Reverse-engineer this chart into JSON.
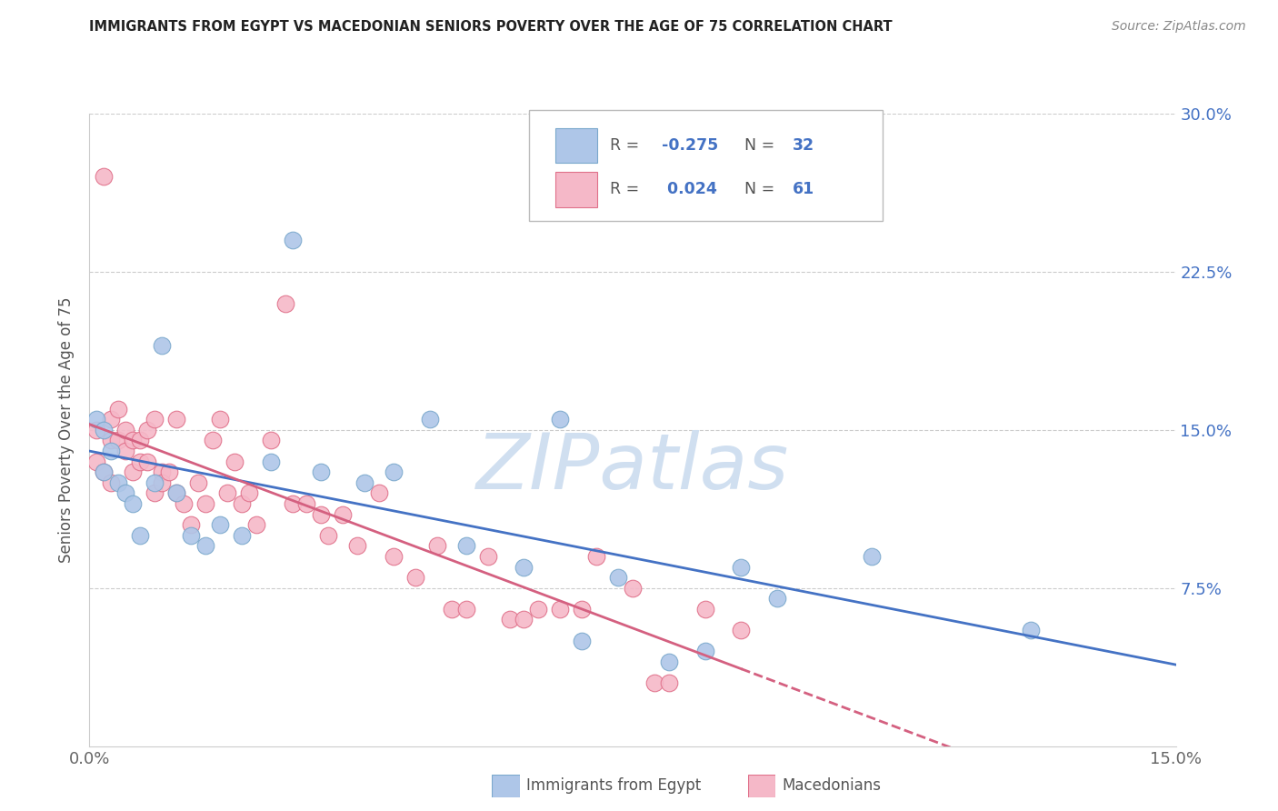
{
  "title": "IMMIGRANTS FROM EGYPT VS MACEDONIAN SENIORS POVERTY OVER THE AGE OF 75 CORRELATION CHART",
  "source": "Source: ZipAtlas.com",
  "ylabel": "Seniors Poverty Over the Age of 75",
  "xmin": 0.0,
  "xmax": 0.15,
  "ymin": 0.0,
  "ymax": 0.3,
  "ytick_values": [
    0.075,
    0.15,
    0.225,
    0.3
  ],
  "ytick_labels": [
    "7.5%",
    "15.0%",
    "22.5%",
    "30.0%"
  ],
  "xtick_values": [
    0.0,
    0.15
  ],
  "xtick_labels": [
    "0.0%",
    "15.0%"
  ],
  "egypt_color": "#aec6e8",
  "egypt_edgecolor": "#7aa8cc",
  "macedonian_color": "#f5b8c8",
  "macedonian_edgecolor": "#e0708a",
  "egypt_line_color": "#4472c4",
  "macedonian_line_color": "#d46080",
  "watermark": "ZIPatlas",
  "watermark_color": "#d0dff0",
  "egypt_R": -0.275,
  "egypt_N": 32,
  "macedonian_R": 0.024,
  "macedonian_N": 61,
  "egypt_x": [
    0.001,
    0.002,
    0.002,
    0.003,
    0.004,
    0.005,
    0.006,
    0.007,
    0.009,
    0.01,
    0.012,
    0.014,
    0.016,
    0.018,
    0.021,
    0.025,
    0.028,
    0.032,
    0.038,
    0.042,
    0.047,
    0.052,
    0.06,
    0.065,
    0.068,
    0.073,
    0.08,
    0.085,
    0.09,
    0.095,
    0.108,
    0.13
  ],
  "egypt_y": [
    0.155,
    0.15,
    0.13,
    0.14,
    0.125,
    0.12,
    0.115,
    0.1,
    0.125,
    0.19,
    0.12,
    0.1,
    0.095,
    0.105,
    0.1,
    0.135,
    0.24,
    0.13,
    0.125,
    0.13,
    0.155,
    0.095,
    0.085,
    0.155,
    0.05,
    0.08,
    0.04,
    0.045,
    0.085,
    0.07,
    0.09,
    0.055
  ],
  "macedonian_x": [
    0.001,
    0.001,
    0.002,
    0.002,
    0.003,
    0.003,
    0.003,
    0.004,
    0.004,
    0.005,
    0.005,
    0.006,
    0.006,
    0.007,
    0.007,
    0.008,
    0.008,
    0.009,
    0.009,
    0.01,
    0.01,
    0.011,
    0.012,
    0.012,
    0.013,
    0.014,
    0.015,
    0.016,
    0.017,
    0.018,
    0.019,
    0.02,
    0.021,
    0.022,
    0.023,
    0.025,
    0.027,
    0.028,
    0.03,
    0.032,
    0.033,
    0.035,
    0.037,
    0.04,
    0.042,
    0.045,
    0.048,
    0.05,
    0.052,
    0.055,
    0.058,
    0.06,
    0.062,
    0.065,
    0.068,
    0.07,
    0.075,
    0.078,
    0.08,
    0.085,
    0.09
  ],
  "macedonian_y": [
    0.15,
    0.135,
    0.27,
    0.13,
    0.155,
    0.145,
    0.125,
    0.16,
    0.145,
    0.15,
    0.14,
    0.145,
    0.13,
    0.145,
    0.135,
    0.15,
    0.135,
    0.155,
    0.12,
    0.13,
    0.125,
    0.13,
    0.155,
    0.12,
    0.115,
    0.105,
    0.125,
    0.115,
    0.145,
    0.155,
    0.12,
    0.135,
    0.115,
    0.12,
    0.105,
    0.145,
    0.21,
    0.115,
    0.115,
    0.11,
    0.1,
    0.11,
    0.095,
    0.12,
    0.09,
    0.08,
    0.095,
    0.065,
    0.065,
    0.09,
    0.06,
    0.06,
    0.065,
    0.065,
    0.065,
    0.09,
    0.075,
    0.03,
    0.03,
    0.065,
    0.055
  ]
}
